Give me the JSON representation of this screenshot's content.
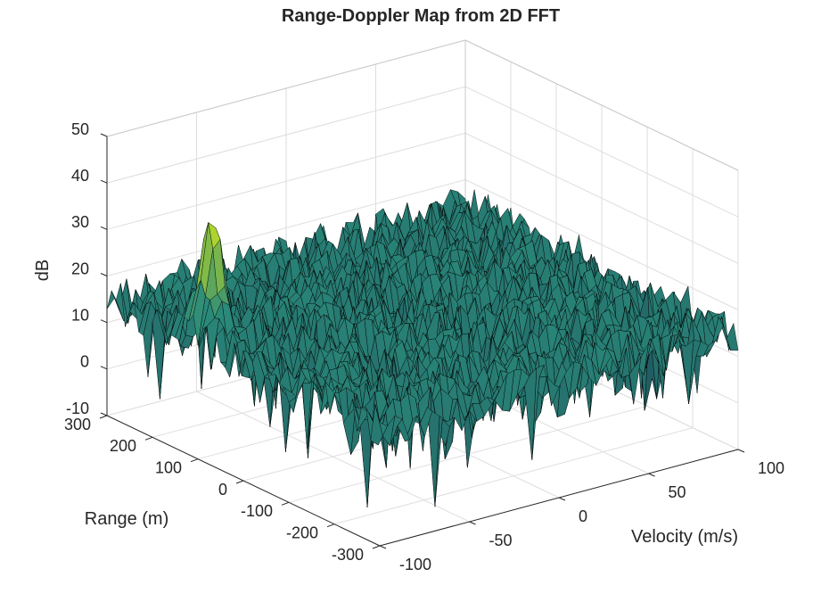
{
  "chart_data": {
    "type": "surface",
    "title": "Range-Doppler Map from 2D FFT",
    "xlabel": "Velocity (m/s)",
    "ylabel": "Range (m)",
    "zlabel": "dB",
    "xlim": [
      -100,
      100
    ],
    "ylim": [
      -300,
      300
    ],
    "zlim": [
      -10,
      50
    ],
    "x_ticks": [
      -100,
      -50,
      0,
      50,
      100
    ],
    "y_ticks": [
      -300,
      -200,
      -100,
      0,
      100,
      200,
      300
    ],
    "z_ticks": [
      -10,
      0,
      10,
      20,
      30,
      40,
      50
    ],
    "x_tick_labels": [
      "-100",
      "-50",
      "0",
      "50",
      "100"
    ],
    "y_tick_labels": [
      "-300",
      "-200",
      "-100",
      "0",
      "100",
      "200",
      "300"
    ],
    "z_tick_labels": [
      "-10",
      "0",
      "10",
      "20",
      "30",
      "40",
      "50"
    ],
    "noise_floor_db": 15,
    "noise_range_db": [
      -8,
      24
    ],
    "peak": {
      "velocity": -90,
      "range": 110,
      "db": 40
    },
    "colormap": "parula",
    "grid": true,
    "colors": {
      "low": "#1f4a5a",
      "mid": "#2a8a7a",
      "high": "#c8e020",
      "edge": "#000000"
    }
  }
}
